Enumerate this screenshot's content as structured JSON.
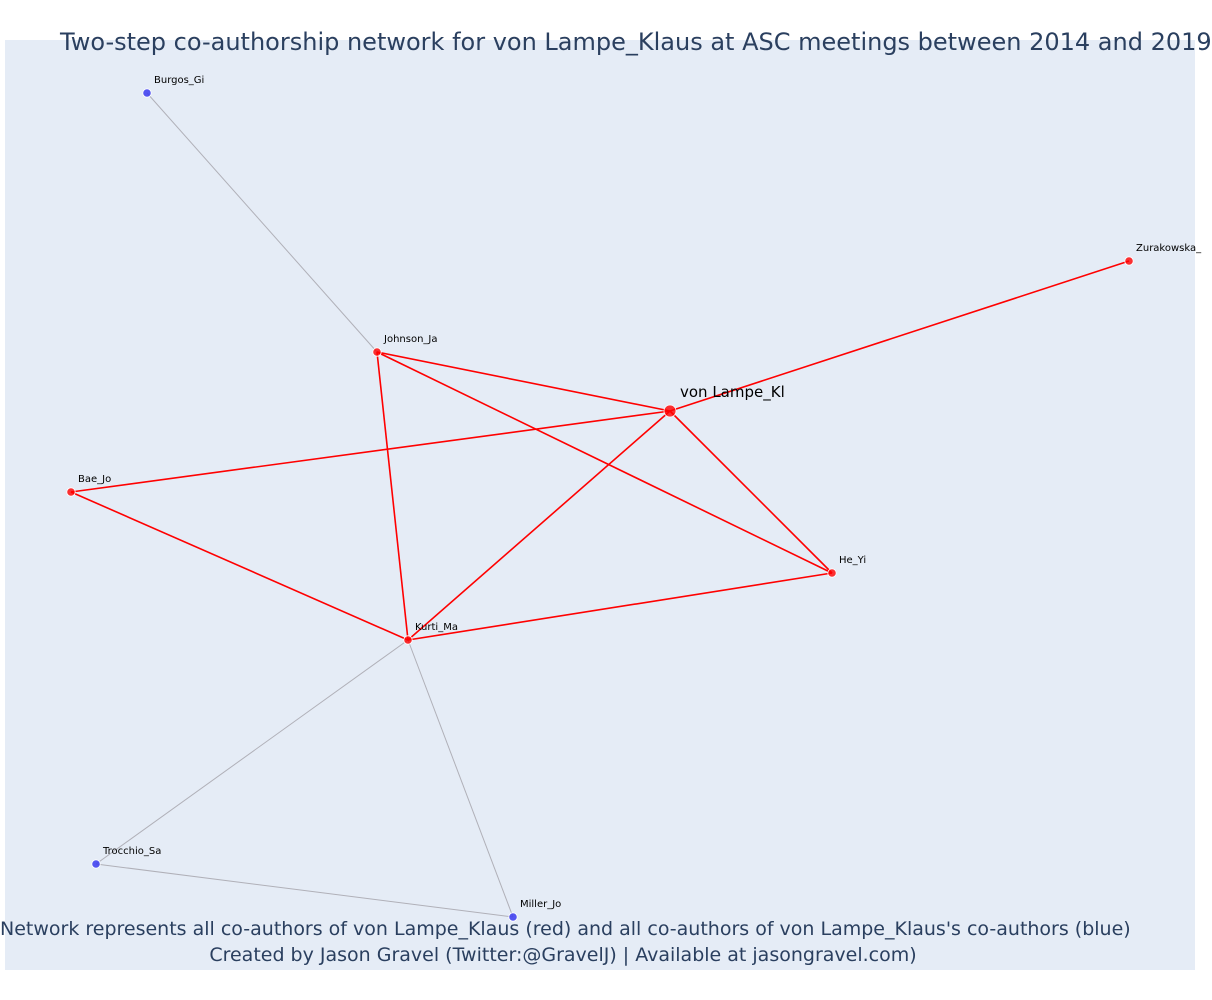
{
  "title": "Two-step co-authorship network for von Lampe_Klaus at ASC meetings between 2014 and 2019",
  "footer": {
    "line1": "Network represents all co-authors of von Lampe_Klaus (red) and all co-authors of von Lampe_Klaus's co-authors (blue)",
    "line2": "Created by Jason Gravel (Twitter:@GravelJ) | Available at jasongravel.com)"
  },
  "colors": {
    "background": "#e5ecf6",
    "red": "#ff0000",
    "blue": "#3b3bf0",
    "gray_edge": "#b0b0b8",
    "title": "#2a3f5f"
  },
  "nodes": [
    {
      "id": "vonlampe",
      "label": "von Lampe_Kl",
      "group": "red",
      "focal": true
    },
    {
      "id": "burgos",
      "label": "Burgos_Gi",
      "group": "blue"
    },
    {
      "id": "zurakowska",
      "label": "Zurakowska_",
      "group": "red"
    },
    {
      "id": "johnson",
      "label": "Johnson_Ja",
      "group": "red"
    },
    {
      "id": "bae",
      "label": "Bae_Jo",
      "group": "red"
    },
    {
      "id": "he",
      "label": "He_Yi",
      "group": "red"
    },
    {
      "id": "kurti",
      "label": "Kurti_Ma",
      "group": "red"
    },
    {
      "id": "trocchio",
      "label": "Trocchio_Sa",
      "group": "blue"
    },
    {
      "id": "miller",
      "label": "Miller_Jo",
      "group": "blue"
    }
  ],
  "edges": [
    {
      "source": "vonlampe",
      "target": "zurakowska",
      "type": "red"
    },
    {
      "source": "vonlampe",
      "target": "johnson",
      "type": "red"
    },
    {
      "source": "vonlampe",
      "target": "bae",
      "type": "red"
    },
    {
      "source": "vonlampe",
      "target": "kurti",
      "type": "red"
    },
    {
      "source": "vonlampe",
      "target": "he",
      "type": "red"
    },
    {
      "source": "johnson",
      "target": "kurti",
      "type": "red"
    },
    {
      "source": "johnson",
      "target": "he",
      "type": "red"
    },
    {
      "source": "bae",
      "target": "kurti",
      "type": "red"
    },
    {
      "source": "kurti",
      "target": "he",
      "type": "red"
    },
    {
      "source": "burgos",
      "target": "johnson",
      "type": "gray"
    },
    {
      "source": "kurti",
      "target": "trocchio",
      "type": "gray"
    },
    {
      "source": "kurti",
      "target": "miller",
      "type": "gray"
    },
    {
      "source": "trocchio",
      "target": "miller",
      "type": "gray"
    }
  ]
}
